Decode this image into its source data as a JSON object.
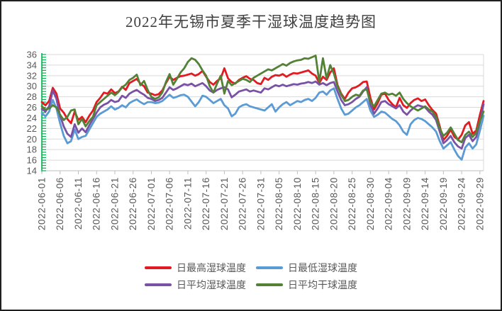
{
  "title": "2022年无锡市夏季干湿球温度趋势图",
  "colors": {
    "title_text": "#3f3f3f",
    "axis_text": "#595959",
    "gridline": "#d9d9d9",
    "x_axis_line": "#bfbfbf",
    "y_axis_ruler": "#00b050",
    "series_red": "#e11b22",
    "series_blue": "#5b9bd5",
    "series_purple": "#7a52a5",
    "series_green": "#538135"
  },
  "chart_data": {
    "type": "line",
    "title": "2022年无锡市夏季干湿球温度趋势图",
    "xlabel": "",
    "ylabel": "",
    "ylim": [
      14,
      36
    ],
    "y_tick_step": 2,
    "y_tick_labels": [
      "36",
      "34",
      "32",
      "30",
      "28",
      "26",
      "24",
      "22",
      "20",
      "18",
      "16",
      "14"
    ],
    "grid": true,
    "legend_position": "bottom",
    "x_start": "2022-06-01",
    "x_end": "2022-09-30",
    "x_point_interval_days": 1,
    "x_tick_interval_days": 5,
    "x_tick_labels": [
      "2022-06-01",
      "2022-06-06",
      "2022-06-11",
      "2022-06-16",
      "2022-06-21",
      "2022-06-26",
      "2022-07-01",
      "2022-07-06",
      "2022-07-11",
      "2022-07-16",
      "2022-07-21",
      "2022-07-26",
      "2022-07-31",
      "2022-08-05",
      "2022-08-10",
      "2022-08-15",
      "2022-08-20",
      "2022-08-25",
      "2022-08-30",
      "2022-09-04",
      "2022-09-09",
      "2022-09-14",
      "2022-09-19",
      "2022-09-24",
      "2022-09-29"
    ],
    "series": [
      {
        "name": "日最高湿球温度",
        "color": "#e11b22",
        "values": [
          27.0,
          26.4,
          27.2,
          29.7,
          28.6,
          25.8,
          25.0,
          23.8,
          23.0,
          25.2,
          23.6,
          24.2,
          23.2,
          24.4,
          25.4,
          27.0,
          27.8,
          28.8,
          28.6,
          29.4,
          28.7,
          29.0,
          29.9,
          29.3,
          30.6,
          31.0,
          31.4,
          30.5,
          30.0,
          28.8,
          28.6,
          28.3,
          28.5,
          29.2,
          30.6,
          31.8,
          31.2,
          31.6,
          31.9,
          32.0,
          32.2,
          32.4,
          32.0,
          32.3,
          32.9,
          31.8,
          30.8,
          30.3,
          31.0,
          31.5,
          33.4,
          31.5,
          30.8,
          30.5,
          31.2,
          31.6,
          31.9,
          31.4,
          31.2,
          30.6,
          30.4,
          31.6,
          31.2,
          31.8,
          32.1,
          32.0,
          32.3,
          31.8,
          32.2,
          32.5,
          32.4,
          32.6,
          32.8,
          33.0,
          32.4,
          32.0,
          30.6,
          31.8,
          31.2,
          32.6,
          33.4,
          30.2,
          28.6,
          27.6,
          28.8,
          29.6,
          29.8,
          30.2,
          30.8,
          30.9,
          27.8,
          25.6,
          26.8,
          28.4,
          28.6,
          27.4,
          26.6,
          26.0,
          27.8,
          26.4,
          25.9,
          26.8,
          27.4,
          27.7,
          27.2,
          27.5,
          26.4,
          25.5,
          24.8,
          22.4,
          19.8,
          20.6,
          21.8,
          20.4,
          19.9,
          20.8,
          22.6,
          23.2,
          21.0,
          21.6,
          24.6,
          27.2
        ]
      },
      {
        "name": "日最低湿球温度",
        "color": "#5b9bd5",
        "values": [
          24.9,
          24.3,
          25.2,
          27.4,
          25.8,
          23.0,
          20.6,
          19.2,
          19.6,
          21.8,
          20.0,
          20.4,
          20.6,
          21.8,
          23.0,
          24.2,
          24.8,
          25.2,
          25.6,
          26.2,
          25.6,
          25.9,
          26.4,
          26.0,
          26.8,
          27.2,
          27.5,
          27.0,
          26.6,
          27.0,
          27.0,
          26.8,
          26.9,
          27.2,
          27.8,
          28.4,
          27.8,
          28.0,
          28.3,
          28.4,
          28.0,
          27.1,
          26.2,
          27.0,
          28.2,
          28.0,
          27.4,
          26.8,
          27.2,
          27.6,
          26.4,
          25.8,
          24.3,
          24.8,
          26.0,
          26.4,
          26.6,
          26.2,
          26.0,
          25.8,
          25.6,
          25.4,
          26.0,
          26.6,
          25.2,
          26.0,
          26.6,
          27.0,
          26.4,
          26.8,
          27.2,
          27.0,
          27.4,
          27.6,
          27.2,
          27.8,
          28.8,
          29.0,
          28.4,
          29.2,
          29.6,
          27.6,
          25.8,
          24.6,
          24.8,
          25.4,
          26.0,
          26.4,
          27.0,
          27.6,
          25.4,
          24.2,
          24.6,
          25.2,
          25.0,
          24.4,
          23.8,
          23.4,
          22.6,
          21.4,
          20.8,
          22.8,
          23.6,
          24.0,
          23.8,
          23.4,
          22.8,
          22.2,
          21.4,
          19.6,
          18.2,
          18.8,
          19.4,
          18.0,
          16.8,
          16.1,
          18.4,
          19.2,
          18.2,
          19.0,
          21.6,
          24.4
        ]
      },
      {
        "name": "日平均湿球温度",
        "color": "#7a52a5",
        "values": [
          25.7,
          25.2,
          26.2,
          29.2,
          27.6,
          24.4,
          22.4,
          21.0,
          20.4,
          22.8,
          21.2,
          22.0,
          21.3,
          22.6,
          23.8,
          25.0,
          26.0,
          26.5,
          26.8,
          27.4,
          27.0,
          27.2,
          28.2,
          27.8,
          28.6,
          29.0,
          29.3,
          28.8,
          28.4,
          27.8,
          27.6,
          27.2,
          27.4,
          27.8,
          28.8,
          29.8,
          29.3,
          29.6,
          30.0,
          30.4,
          30.2,
          30.5,
          30.0,
          30.3,
          30.6,
          30.0,
          29.2,
          28.8,
          29.3,
          29.6,
          29.8,
          29.4,
          27.9,
          28.4,
          29.0,
          29.2,
          29.4,
          29.0,
          29.2,
          29.0,
          28.8,
          29.6,
          29.4,
          29.8,
          30.2,
          30.0,
          30.3,
          30.0,
          30.2,
          30.4,
          30.3,
          30.5,
          30.6,
          30.8,
          30.6,
          30.9,
          30.3,
          30.6,
          30.2,
          30.6,
          30.8,
          29.0,
          27.4,
          26.4,
          26.6,
          27.0,
          27.6,
          28.0,
          29.0,
          29.8,
          26.5,
          24.8,
          25.8,
          27.0,
          27.2,
          26.6,
          26.2,
          25.8,
          26.4,
          25.2,
          24.6,
          25.4,
          26.0,
          26.4,
          26.2,
          26.0,
          25.2,
          24.6,
          23.6,
          21.4,
          19.2,
          19.8,
          20.6,
          19.4,
          18.6,
          18.2,
          20.2,
          20.8,
          19.6,
          20.4,
          23.2,
          26.6
        ]
      },
      {
        "name": "日平均干球温度",
        "color": "#538135",
        "values": [
          26.2,
          25.6,
          25.8,
          26.4,
          26.0,
          24.6,
          23.6,
          24.2,
          25.4,
          25.6,
          22.8,
          23.8,
          22.4,
          23.4,
          24.2,
          26.4,
          27.0,
          27.6,
          28.2,
          28.8,
          28.3,
          28.9,
          29.8,
          30.3,
          31.2,
          31.6,
          32.2,
          30.2,
          31.0,
          29.3,
          28.0,
          27.6,
          27.9,
          28.8,
          30.8,
          32.3,
          30.3,
          31.4,
          32.6,
          33.4,
          34.6,
          35.3,
          35.0,
          34.2,
          33.0,
          32.0,
          30.0,
          28.8,
          30.5,
          32.0,
          28.6,
          31.0,
          30.2,
          30.6,
          31.0,
          31.4,
          31.2,
          30.8,
          31.6,
          32.0,
          32.4,
          32.8,
          33.2,
          33.0,
          33.4,
          33.8,
          34.2,
          33.9,
          34.4,
          34.7,
          34.9,
          35.0,
          35.3,
          35.2,
          35.5,
          35.8,
          30.8,
          35.3,
          31.5,
          34.0,
          32.4,
          30.0,
          28.4,
          27.2,
          27.4,
          28.0,
          28.4,
          28.2,
          29.2,
          29.4,
          27.0,
          26.2,
          27.4,
          28.6,
          28.8,
          28.4,
          28.6,
          28.2,
          28.8,
          27.6,
          26.8,
          26.2,
          25.8,
          25.4,
          25.8,
          26.2,
          25.6,
          25.2,
          24.2,
          22.0,
          20.6,
          21.2,
          22.2,
          21.0,
          19.8,
          19.4,
          20.8,
          21.4,
          20.4,
          21.2,
          23.4,
          25.2
        ]
      }
    ]
  }
}
